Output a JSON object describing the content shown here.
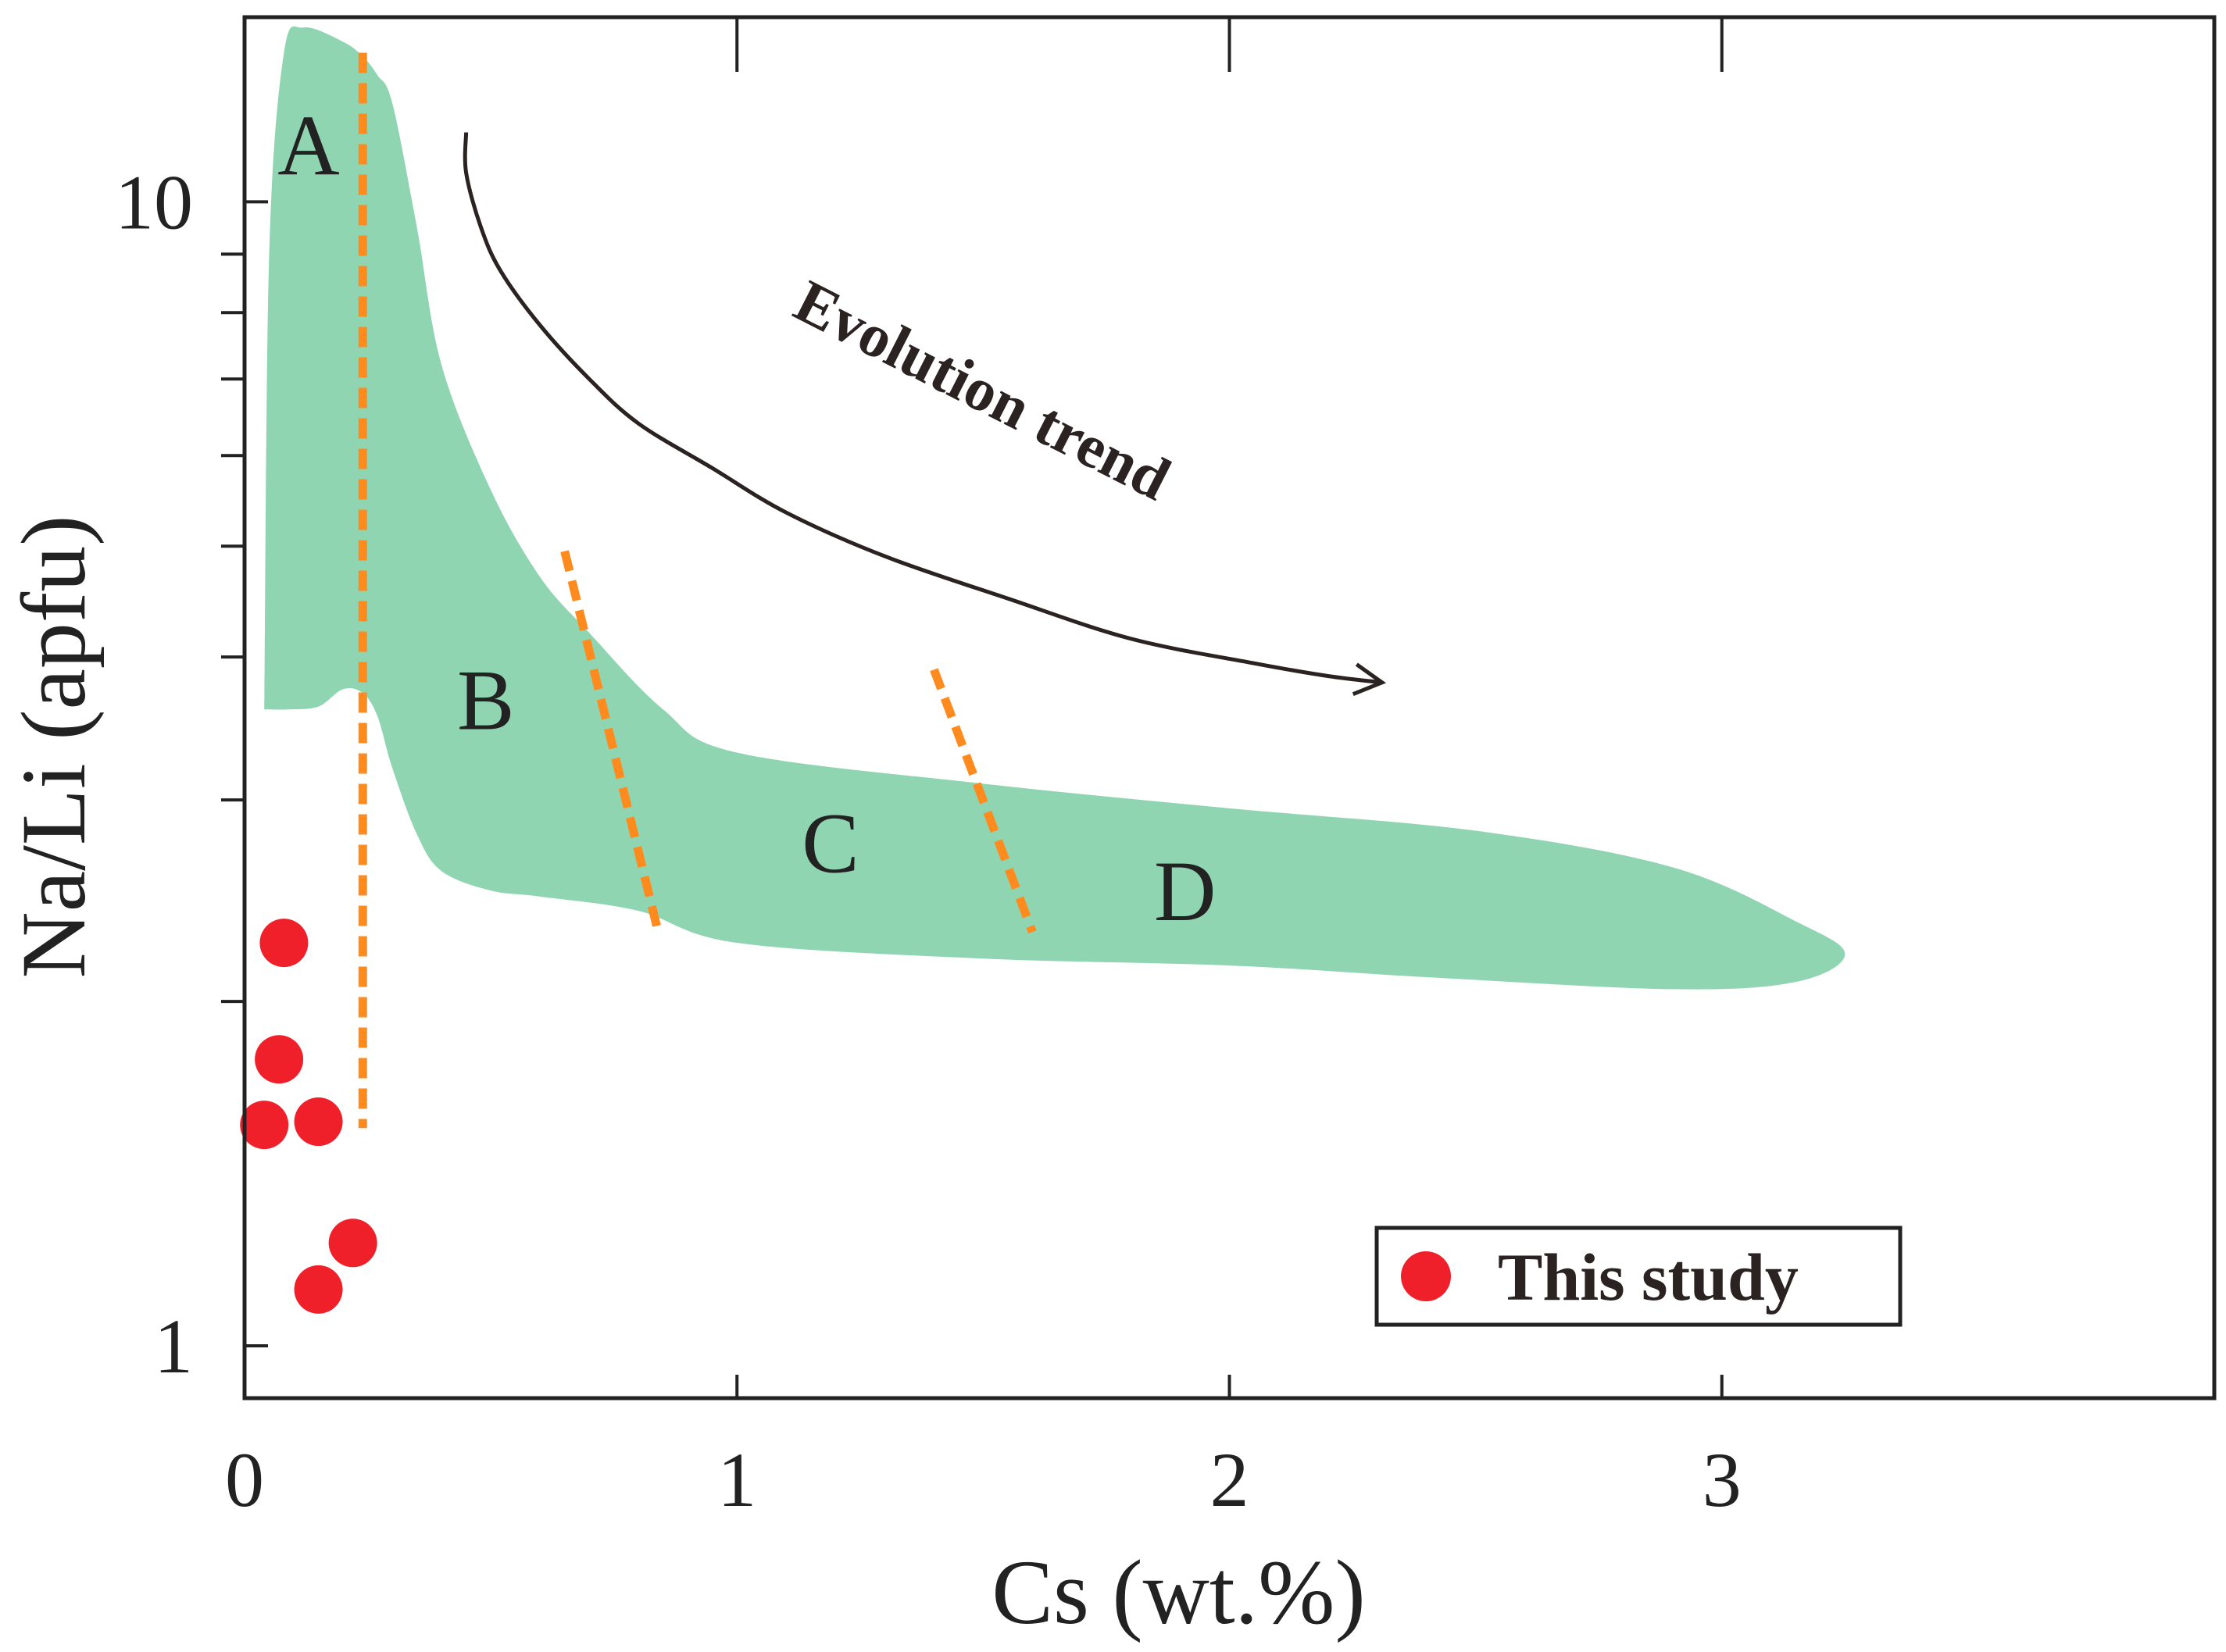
{
  "chart_data": {
    "type": "scatter",
    "title": "",
    "xlabel": "Cs (wt.%)",
    "ylabel": "Na/Li (apfu)",
    "xlim": [
      0,
      4
    ],
    "ylim": [
      0.9,
      14.5
    ],
    "yscale": "log",
    "x_ticks": [
      0,
      1,
      2,
      3
    ],
    "x_tick_labels": [
      "0",
      "1",
      "2",
      "3"
    ],
    "y_major_ticks": [
      1,
      10
    ],
    "y_major_tick_labels": [
      "1",
      "10"
    ],
    "y_minor_ticks": [
      2,
      3,
      4,
      5,
      6,
      7,
      8,
      9
    ],
    "grid": false,
    "legend_position": "bottom-right",
    "series": [
      {
        "name": "This study",
        "color": "#f0202b",
        "x": [
          0.08,
          0.07,
          0.04,
          0.15,
          0.22,
          0.15
        ],
        "y": [
          2.25,
          1.78,
          1.56,
          1.57,
          1.23,
          1.12
        ]
      }
    ],
    "field": {
      "color": "#90d5b1",
      "outline": [
        [
          0.04,
          3.6
        ],
        [
          0.05,
          9.0
        ],
        [
          0.08,
          13.5
        ],
        [
          0.12,
          14.2
        ],
        [
          0.2,
          13.8
        ],
        [
          0.24,
          13.4
        ],
        [
          0.27,
          12.9
        ],
        [
          0.3,
          12.2
        ],
        [
          0.35,
          9.5
        ],
        [
          0.4,
          7.2
        ],
        [
          0.5,
          5.6
        ],
        [
          0.6,
          4.7
        ],
        [
          0.7,
          4.2
        ],
        [
          0.85,
          3.6
        ],
        [
          1.0,
          3.3
        ],
        [
          1.5,
          3.1
        ],
        [
          2.0,
          2.95
        ],
        [
          2.5,
          2.82
        ],
        [
          2.9,
          2.62
        ],
        [
          3.15,
          2.35
        ],
        [
          3.25,
          2.2
        ],
        [
          3.15,
          2.08
        ],
        [
          2.9,
          2.05
        ],
        [
          2.4,
          2.1
        ],
        [
          2.0,
          2.15
        ],
        [
          1.5,
          2.18
        ],
        [
          1.0,
          2.25
        ],
        [
          0.8,
          2.4
        ],
        [
          0.6,
          2.47
        ],
        [
          0.5,
          2.5
        ],
        [
          0.4,
          2.6
        ],
        [
          0.35,
          2.8
        ],
        [
          0.3,
          3.2
        ],
        [
          0.27,
          3.55
        ],
        [
          0.24,
          3.72
        ],
        [
          0.2,
          3.75
        ],
        [
          0.15,
          3.62
        ],
        [
          0.09,
          3.6
        ],
        [
          0.04,
          3.6
        ]
      ]
    },
    "region_labels": [
      {
        "text": "A",
        "x": 0.13,
        "y": 11.0
      },
      {
        "text": "B",
        "x": 0.49,
        "y": 3.6
      },
      {
        "text": "C",
        "x": 1.19,
        "y": 2.7
      },
      {
        "text": "D",
        "x": 1.91,
        "y": 2.45
      }
    ],
    "boundaries": [
      {
        "color": "#ff8b1f",
        "x": [
          0.24,
          0.24
        ],
        "y": [
          13.5,
          1.55
        ]
      },
      {
        "color": "#ff8b1f",
        "x": [
          0.65,
          0.84
        ],
        "y": [
          4.95,
          2.3
        ]
      },
      {
        "color": "#ff8b1f",
        "x": [
          1.4,
          1.6
        ],
        "y": [
          3.9,
          2.3
        ]
      }
    ],
    "trend_curve": {
      "label": "Evolution trend",
      "color": "#2b2222",
      "x": [
        0.45,
        0.45,
        0.48,
        0.52,
        0.6,
        0.7,
        0.8,
        0.95,
        1.1,
        1.3,
        1.55,
        1.8,
        2.05,
        2.2,
        2.31
      ],
      "y": [
        11.5,
        10.6,
        9.5,
        8.7,
        7.8,
        7.0,
        6.4,
        5.85,
        5.35,
        4.9,
        4.5,
        4.15,
        3.95,
        3.85,
        3.8
      ]
    },
    "trend_label_pos": {
      "x": 1.48,
      "y": 6.6
    },
    "legend": {
      "marker_color": "#f0202b",
      "label": "This study"
    }
  }
}
